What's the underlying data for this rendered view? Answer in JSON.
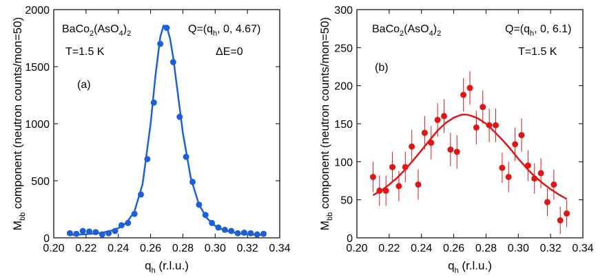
{
  "chart_data": [
    {
      "type": "scatter",
      "panel_label": "(a)",
      "color": "#1f5fd6",
      "xlabel": {
        "main": "q",
        "sub": "h",
        "unit": " (r.l.u.)"
      },
      "ylabel": {
        "main": "M",
        "sub": "bb",
        "rest": " component (neutron counts/mon=50)"
      },
      "xlim": [
        0.2,
        0.34
      ],
      "ylim": [
        0,
        2000
      ],
      "xticks": [
        0.2,
        0.22,
        0.24,
        0.26,
        0.28,
        0.3,
        0.32,
        0.34
      ],
      "yticks": [
        0,
        500,
        1000,
        1500,
        2000
      ],
      "xtick_labels": [
        "0.20",
        "0.22",
        "0.24",
        "0.26",
        "0.28",
        "0.30",
        "0.32",
        "0.34"
      ],
      "ytick_labels": [
        "0",
        "500",
        "1000",
        "1500",
        "2000"
      ],
      "annotations": {
        "compound": {
          "a": "BaCo",
          "b": "2",
          "c": "(AsO",
          "d": "4",
          "e": ")",
          "f": "2"
        },
        "temperature": "T=1.5 K",
        "q": {
          "a": "Q=(q",
          "b": "h",
          "c": ", 0, 4.67)"
        },
        "energy": "ΔE=0"
      },
      "series": [
        {
          "kind": "points",
          "x": [
            0.21,
            0.214,
            0.218,
            0.222,
            0.226,
            0.23,
            0.234,
            0.238,
            0.242,
            0.246,
            0.25,
            0.254,
            0.258,
            0.262,
            0.266,
            0.27,
            0.274,
            0.278,
            0.282,
            0.286,
            0.29,
            0.294,
            0.298,
            0.302,
            0.306,
            0.31,
            0.314,
            0.318,
            0.322,
            0.326,
            0.33
          ],
          "y": [
            40,
            35,
            60,
            55,
            50,
            30,
            40,
            60,
            110,
            130,
            210,
            380,
            690,
            1185,
            1700,
            1840,
            1540,
            1060,
            710,
            490,
            290,
            200,
            130,
            90,
            70,
            60,
            40,
            45,
            40,
            30,
            35
          ]
        },
        {
          "kind": "fit_line",
          "x": [
            0.21,
            0.215,
            0.22,
            0.225,
            0.23,
            0.235,
            0.24,
            0.245,
            0.25,
            0.255,
            0.26,
            0.263,
            0.266,
            0.268,
            0.27,
            0.272,
            0.274,
            0.277,
            0.28,
            0.285,
            0.29,
            0.295,
            0.3,
            0.305,
            0.31,
            0.315,
            0.32,
            0.325,
            0.33
          ],
          "y": [
            25,
            28,
            32,
            37,
            45,
            60,
            85,
            130,
            230,
            470,
            1000,
            1420,
            1760,
            1860,
            1850,
            1750,
            1580,
            1250,
            920,
            520,
            290,
            170,
            105,
            70,
            50,
            38,
            31,
            27,
            24
          ]
        }
      ]
    },
    {
      "type": "scatter",
      "panel_label": "(b)",
      "color": "#e01616",
      "xlabel": {
        "main": "q",
        "sub": "h",
        "unit": " (r.l.u.)"
      },
      "ylabel": {
        "main": "M",
        "sub": "bb",
        "rest": " component (neutron counts/mon=50)"
      },
      "xlim": [
        0.2,
        0.34
      ],
      "ylim": [
        0,
        300
      ],
      "xticks": [
        0.2,
        0.22,
        0.24,
        0.26,
        0.28,
        0.3,
        0.32,
        0.34
      ],
      "yticks": [
        0,
        50,
        100,
        150,
        200,
        250,
        300
      ],
      "xtick_labels": [
        "0.20",
        "0.22",
        "0.24",
        "0.26",
        "0.28",
        "0.30",
        "0.32",
        "0.34"
      ],
      "ytick_labels": [
        "0",
        "50",
        "100",
        "150",
        "200",
        "250",
        "300"
      ],
      "annotations": {
        "compound": {
          "a": "BaCo",
          "b": "2",
          "c": "(AsO",
          "d": "4",
          "e": ")",
          "f": "2"
        },
        "temperature": "T=1.5 K",
        "q": {
          "a": "Q=(q",
          "b": "h",
          "c": ", 0, 6.1)"
        }
      },
      "series": [
        {
          "kind": "points_with_error",
          "x": [
            0.21,
            0.214,
            0.218,
            0.222,
            0.226,
            0.23,
            0.234,
            0.238,
            0.242,
            0.246,
            0.25,
            0.254,
            0.258,
            0.262,
            0.266,
            0.27,
            0.274,
            0.278,
            0.282,
            0.286,
            0.29,
            0.294,
            0.298,
            0.302,
            0.306,
            0.31,
            0.314,
            0.318,
            0.322,
            0.326,
            0.33
          ],
          "y": [
            80,
            62,
            62,
            93,
            68,
            93,
            120,
            70,
            138,
            125,
            155,
            160,
            116,
            113,
            188,
            197,
            145,
            172,
            148,
            148,
            92,
            80,
            123,
            135,
            95,
            78,
            85,
            47,
            70,
            23,
            32
          ],
          "err": [
            20,
            20,
            20,
            20,
            20,
            20,
            22,
            20,
            22,
            22,
            22,
            22,
            22,
            22,
            22,
            22,
            22,
            22,
            22,
            22,
            20,
            20,
            22,
            22,
            20,
            20,
            20,
            18,
            20,
            18,
            18
          ]
        },
        {
          "kind": "fit_line",
          "x": [
            0.21,
            0.215,
            0.22,
            0.225,
            0.23,
            0.235,
            0.24,
            0.245,
            0.25,
            0.255,
            0.26,
            0.265,
            0.268,
            0.27,
            0.275,
            0.28,
            0.285,
            0.29,
            0.295,
            0.3,
            0.305,
            0.31,
            0.315,
            0.32,
            0.325,
            0.33
          ],
          "y": [
            56,
            62,
            70,
            79,
            90,
            102,
            115,
            128,
            141,
            151,
            158,
            162,
            162,
            161,
            157,
            150,
            140,
            129,
            117,
            104,
            92,
            81,
            72,
            64,
            57,
            51
          ]
        }
      ]
    }
  ]
}
